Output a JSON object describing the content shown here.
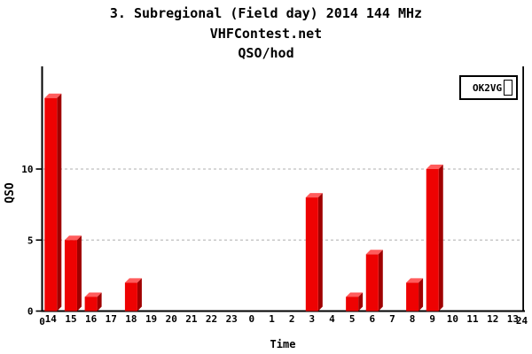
{
  "titles": {
    "main": "3. Subregional (Field day) 2014 144 MHz",
    "site": "VHFContest.net"
  },
  "chart_data": {
    "type": "bar",
    "title": "QSO/hod",
    "xlabel": "Time",
    "ylabel": "QSO",
    "categories": [
      "14",
      "15",
      "16",
      "17",
      "18",
      "19",
      "20",
      "21",
      "22",
      "23",
      "0",
      "1",
      "2",
      "3",
      "4",
      "5",
      "6",
      "7",
      "8",
      "9",
      "10",
      "11",
      "12",
      "13"
    ],
    "series": [
      {
        "name": "OK2VG",
        "values": [
          15,
          5,
          1,
          0,
          2,
          0,
          0,
          0,
          0,
          0,
          0,
          0,
          0,
          8,
          0,
          1,
          4,
          0,
          2,
          10,
          0,
          0,
          0,
          0
        ]
      }
    ],
    "x_edge_labels": [
      "0",
      "24"
    ],
    "yticks": [
      0,
      5,
      10
    ],
    "ylim": [
      0,
      17.2
    ],
    "grid": "horizontal-dashed",
    "legend_position": "top-right",
    "bar_style": "3d",
    "colors": {
      "bar_front": "#ee0202",
      "bar_side": "#a00000",
      "bar_top": "#ff5c5c",
      "axis": "#000000",
      "grid": "#bfbfbf",
      "background": "#ffffff"
    }
  }
}
